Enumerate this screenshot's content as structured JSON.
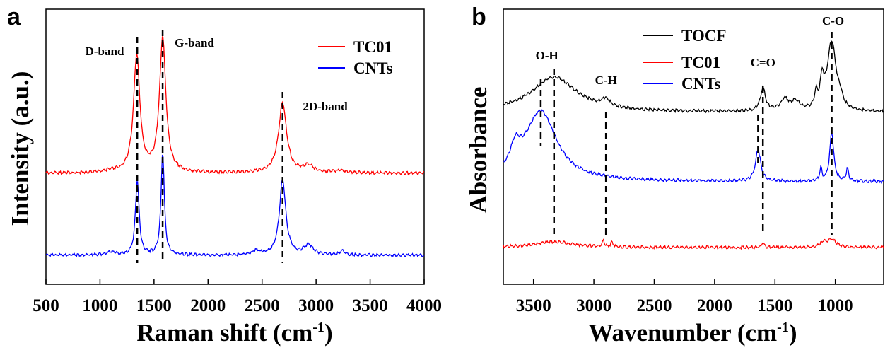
{
  "chart_data": [
    {
      "panel": "a",
      "type": "line",
      "xlabel": "Raman shift (cm",
      "xlabel_sup": "-1",
      "xlabel_end": ")",
      "ylabel": "Intensity (a.u.)",
      "xlim": [
        500,
        4000
      ],
      "xticks": [
        "500",
        "1000",
        "1500",
        "2000",
        "2500",
        "3000",
        "3500",
        "4000"
      ],
      "y_ticks_shown": false,
      "legend_position": "top-right",
      "series": [
        {
          "name": "TC01",
          "color": "#ff0000",
          "offset": 0.55,
          "peaks": [
            [
              1340,
              0.72,
              35
            ],
            [
              1580,
              0.83,
              35
            ],
            [
              2690,
              0.43,
              45
            ],
            [
              2930,
              0.04,
              60
            ],
            [
              3230,
              0.015,
              60
            ],
            [
              1100,
              0.01,
              60
            ]
          ]
        },
        {
          "name": "CNTs",
          "color": "#0000ff",
          "offset": 0.0,
          "peaks": [
            [
              1345,
              0.55,
              20
            ],
            [
              1580,
              0.75,
              18
            ],
            [
              2690,
              0.55,
              35
            ],
            [
              2440,
              0.03,
              40
            ],
            [
              2930,
              0.07,
              50
            ],
            [
              3240,
              0.03,
              30
            ],
            [
              1100,
              0.02,
              60
            ]
          ]
        }
      ],
      "annotations": [
        {
          "text": "D-band",
          "x": 1345
        },
        {
          "text": "G-band",
          "x": 1580
        },
        {
          "text": "2D-band",
          "x": 2690
        }
      ]
    },
    {
      "panel": "b",
      "type": "line",
      "xlabel": "Wavenumber (cm",
      "xlabel_sup": "-1",
      "xlabel_end": ")",
      "ylabel": "Absorbance",
      "xlim": [
        3750,
        600
      ],
      "xticks": [
        "3500",
        "3000",
        "2500",
        "2000",
        "1500",
        "1000"
      ],
      "y_ticks_shown": false,
      "legend_position": "top",
      "series": [
        {
          "name": "TOCF",
          "color": "#000000",
          "offset": 0.55,
          "peaks": [
            [
              3330,
              0.3,
              230
            ],
            [
              2900,
              0.06,
              40
            ],
            [
              1600,
              0.2,
              25
            ],
            [
              1420,
              0.1,
              40
            ],
            [
              1330,
              0.08,
              40
            ],
            [
              1160,
              0.12,
              15
            ],
            [
              1110,
              0.22,
              18
            ],
            [
              1030,
              0.6,
              45
            ],
            [
              960,
              0.06,
              20
            ]
          ]
        },
        {
          "name": "TC01",
          "color": "#ff0000",
          "offset": 0.02,
          "peaks": [
            [
              3330,
              0.035,
              200
            ],
            [
              2920,
              0.04,
              10
            ],
            [
              2850,
              0.03,
              10
            ],
            [
              1600,
              0.03,
              12
            ],
            [
              1100,
              0.03,
              30
            ],
            [
              1030,
              0.05,
              40
            ]
          ]
        },
        {
          "name": "CNTs",
          "color": "#0000ff",
          "offset": 0.3,
          "peaks": [
            [
              3440,
              0.33,
              160
            ],
            [
              3650,
              0.1,
              50
            ],
            [
              1640,
              0.15,
              25
            ],
            [
              1120,
              0.06,
              10
            ],
            [
              1030,
              0.23,
              20
            ],
            [
              900,
              0.06,
              12
            ]
          ]
        }
      ],
      "annotations": [
        {
          "text": "O-H",
          "x": 3330
        },
        {
          "text": "C-H",
          "x": 2900
        },
        {
          "text": "C=O",
          "x": 1600
        },
        {
          "text": "C-O",
          "x": 1030
        }
      ]
    }
  ]
}
